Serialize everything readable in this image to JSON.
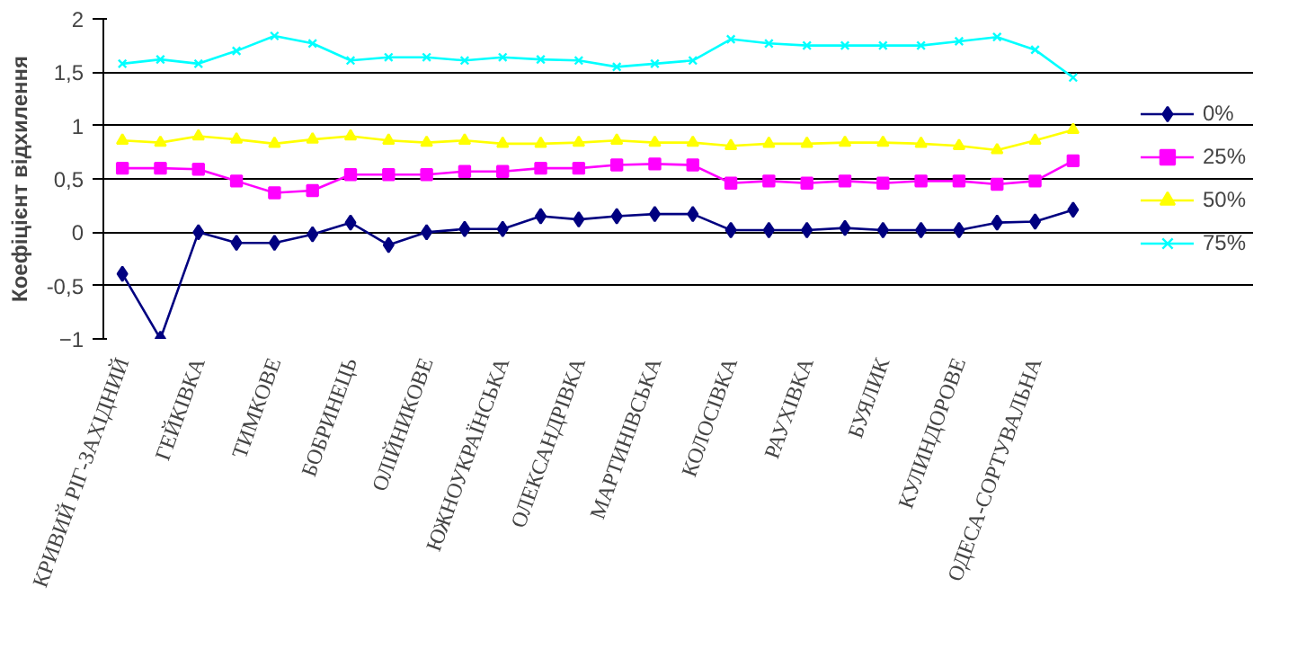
{
  "chart_data": {
    "type": "line",
    "ylabel": "Коефіцієнт відхилення",
    "categories": [
      "КРИВИЙ РІГ-ЗАХІДНИЙ",
      null,
      "ГЕЙКІВКА",
      null,
      "ТИМКОВЕ",
      null,
      "БОБРИНЕЦЬ",
      null,
      "ОЛІЙНИКОВЕ",
      null,
      "ЮЖНОУКРАЇНСЬКА",
      null,
      "ОЛЕКСАНДРІВКА",
      null,
      "МАРТИНІВСЬКА",
      null,
      "КОЛОСІВКА",
      null,
      "РАУХІВКА",
      null,
      "БУЯЛИК",
      null,
      "КУЛИНДОРОВЕ",
      null,
      "ОДЕСА-СОРТУВАЛЬНА",
      null
    ],
    "series": [
      {
        "name": "0%",
        "color": "#000080",
        "marker": "diamond",
        "values": [
          -0.39,
          -1.0,
          0,
          -0.1,
          -0.1,
          -0.02,
          0.09,
          -0.12,
          0,
          0.03,
          0.03,
          0.15,
          0.12,
          0.15,
          0.17,
          0.17,
          0.02,
          0.02,
          0.02,
          0.04,
          0.02,
          0.02,
          0.02,
          0.09,
          0.1,
          0.21
        ]
      },
      {
        "name": "25%",
        "color": "#ff00ff",
        "marker": "square",
        "values": [
          0.6,
          0.6,
          0.59,
          0.48,
          0.37,
          0.39,
          0.54,
          0.54,
          0.54,
          0.57,
          0.57,
          0.6,
          0.6,
          0.63,
          0.64,
          0.63,
          0.46,
          0.48,
          0.46,
          0.48,
          0.46,
          0.48,
          0.48,
          0.45,
          0.48,
          0.67
        ]
      },
      {
        "name": "50%",
        "color": "#ffff00",
        "marker": "triangle",
        "values": [
          0.86,
          0.84,
          0.9,
          0.87,
          0.83,
          0.87,
          0.9,
          0.86,
          0.84,
          0.86,
          0.83,
          0.83,
          0.84,
          0.86,
          0.84,
          0.84,
          0.81,
          0.83,
          0.83,
          0.84,
          0.84,
          0.83,
          0.81,
          0.77,
          0.86,
          0.96
        ]
      },
      {
        "name": "75%",
        "color": "#00ffff",
        "marker": "cross",
        "values": [
          1.58,
          1.62,
          1.58,
          1.7,
          1.84,
          1.77,
          1.61,
          1.64,
          1.64,
          1.61,
          1.64,
          1.62,
          1.61,
          1.55,
          1.58,
          1.61,
          1.81,
          1.77,
          1.75,
          1.75,
          1.75,
          1.75,
          1.79,
          1.83,
          1.71,
          1.45
        ]
      }
    ],
    "ylim": [
      -1,
      2
    ],
    "yticks": [
      -1,
      {
        "value": -0.5,
        "label": "-0,5"
      },
      0,
      {
        "value": 0.5,
        "label": "0,5"
      },
      1,
      {
        "value": 1.5,
        "label": "1,5"
      },
      2
    ],
    "grid": "y",
    "legend": "right",
    "line_style": "solid"
  }
}
